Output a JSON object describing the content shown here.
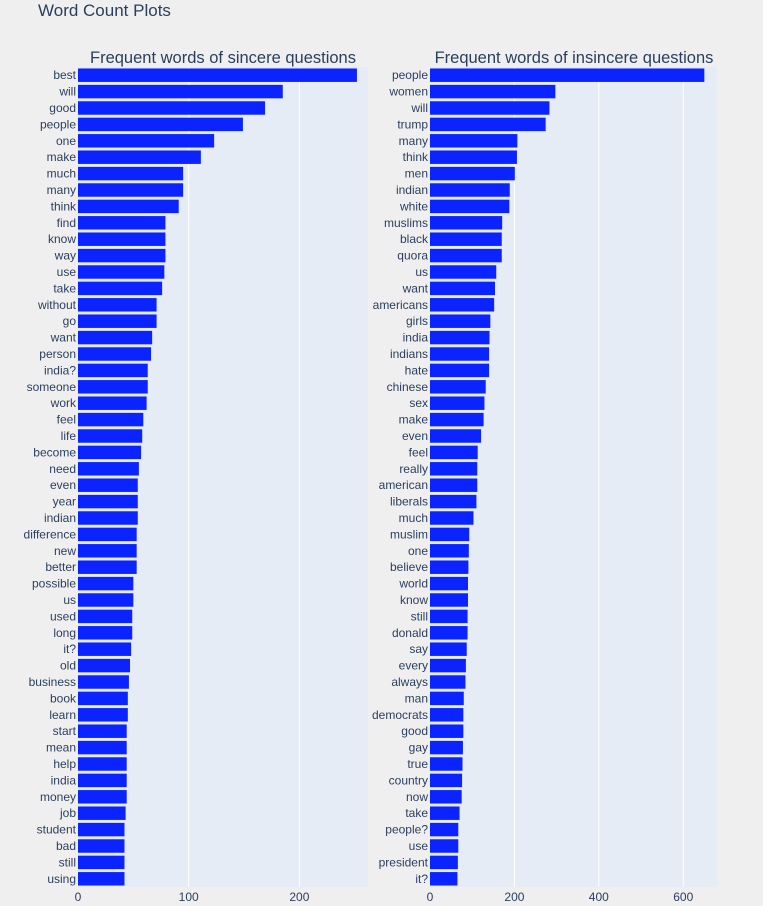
{
  "page": {
    "title": "Word Count Plots"
  },
  "colors": {
    "bar": "#0a23ff",
    "plot_bg": "#e5ecf6",
    "grid": "#ffffff",
    "text": "#2a3f5f",
    "page_bg": "#efefef"
  },
  "chart_data": [
    {
      "type": "bar",
      "orientation": "horizontal",
      "title": "Frequent words of sincere questions",
      "xlabel": "",
      "ylabel": "",
      "xlim": [
        0,
        262
      ],
      "xticks": [
        0,
        100,
        200
      ],
      "grid": true,
      "categories": [
        "best",
        "will",
        "good",
        "people",
        "one",
        "make",
        "much",
        "many",
        "think",
        "find",
        "know",
        "way",
        "use",
        "take",
        "without",
        "go",
        "want",
        "person",
        "india?",
        "someone",
        "work",
        "feel",
        "life",
        "become",
        "need",
        "even",
        "year",
        "indian",
        "difference",
        "new",
        "better",
        "possible",
        "us",
        "used",
        "long",
        "it?",
        "old",
        "business",
        "book",
        "learn",
        "start",
        "mean",
        "help",
        "india",
        "money",
        "job",
        "student",
        "bad",
        "still",
        "using"
      ],
      "values": [
        252,
        185,
        169,
        149,
        123,
        111,
        95,
        95,
        91,
        79,
        79,
        79,
        78,
        76,
        71,
        71,
        67,
        66,
        63,
        63,
        62,
        59,
        58,
        57,
        55,
        54,
        54,
        54,
        53,
        53,
        53,
        50,
        50,
        49,
        49,
        48,
        47,
        46,
        45,
        45,
        44,
        44,
        44,
        44,
        44,
        43,
        42,
        42,
        42,
        42
      ]
    },
    {
      "type": "bar",
      "orientation": "horizontal",
      "title": "Frequent words of insincere questions",
      "xlabel": "",
      "ylabel": "",
      "xlim": [
        0,
        680
      ],
      "xticks": [
        0,
        200,
        400,
        600
      ],
      "grid": true,
      "categories": [
        "people",
        "women",
        "will",
        "trump",
        "many",
        "think",
        "men",
        "indian",
        "white",
        "muslims",
        "black",
        "quora",
        "us",
        "want",
        "americans",
        "girls",
        "india",
        "indians",
        "hate",
        "chinese",
        "sex",
        "make",
        "even",
        "feel",
        "really",
        "american",
        "liberals",
        "much",
        "muslim",
        "one",
        "believe",
        "world",
        "know",
        "still",
        "donald",
        "say",
        "every",
        "always",
        "man",
        "democrats",
        "good",
        "gay",
        "true",
        "country",
        "now",
        "take",
        "people?",
        "use",
        "president",
        "it?"
      ],
      "values": [
        650,
        297,
        283,
        274,
        207,
        206,
        201,
        189,
        188,
        171,
        170,
        170,
        157,
        154,
        152,
        143,
        141,
        140,
        140,
        132,
        129,
        127,
        121,
        113,
        112,
        112,
        110,
        103,
        93,
        92,
        91,
        90,
        90,
        89,
        89,
        87,
        85,
        84,
        80,
        79,
        79,
        78,
        77,
        76,
        75,
        70,
        67,
        67,
        66,
        65
      ]
    }
  ]
}
